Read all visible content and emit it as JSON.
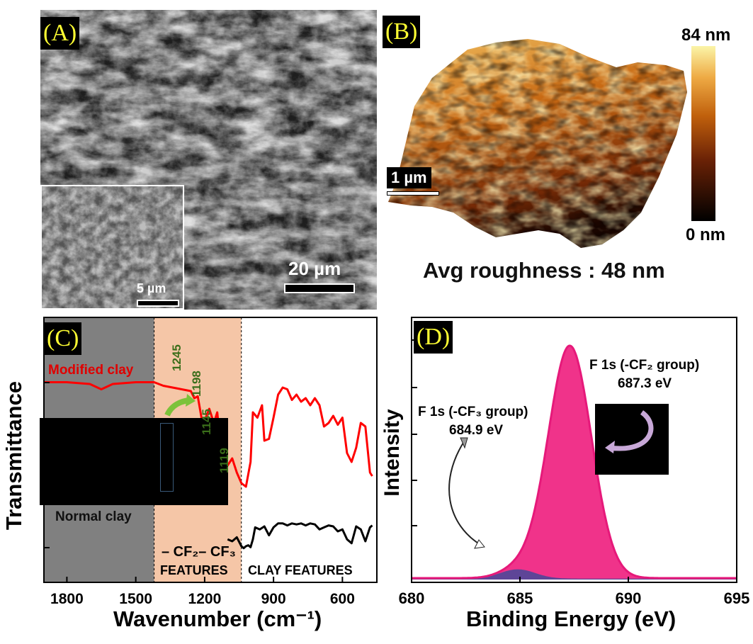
{
  "panels": {
    "a": {
      "label": "(A)",
      "scale_bar": "20 µm",
      "inset_scale_bar": "5 µm"
    },
    "b": {
      "label": "(B)",
      "scale_bar": "1 µm",
      "colorbar_max": "84 nm",
      "colorbar_min": "0 nm",
      "roughness": "Avg roughness : 48 nm",
      "colors": {
        "low": "#000000",
        "mid": "#c0600c",
        "high": "#f8f0a0"
      }
    },
    "c": {
      "label": "(C)",
      "series_top": "Modified clay",
      "series_bottom": "Normal clay",
      "peaks": [
        "1245",
        "1198",
        "1145",
        "1119"
      ],
      "region_cf": "– CF₂– CF₃",
      "region_cf_features": "FEATURES",
      "region_clay": "CLAY FEATURES",
      "colors": {
        "modified": "#ff0000",
        "normal": "#000000",
        "gray_region": "#808080",
        "cf_region": "#f5c6a7",
        "peak_text": "#3a6e1a"
      }
    },
    "d": {
      "label": "(D)",
      "peak_cf2_line1": "F 1s (-CF₂ group)",
      "peak_cf2_line2": "687.3 eV",
      "peak_cf3_line1": "F 1s (-CF₃ group)",
      "peak_cf3_line2": "684.9 eV",
      "colors": {
        "fill": "#f0338a",
        "line": "#e6197a"
      }
    }
  },
  "chart_data": [
    {
      "type": "line",
      "panel": "C",
      "xlabel": "Wavenumber (cm⁻¹)",
      "ylabel": "Transmittance",
      "xlim": [
        1900,
        450
      ],
      "xticks": [
        1800,
        1500,
        1200,
        900,
        600
      ],
      "series": [
        {
          "name": "Modified clay",
          "x": [
            1900,
            1800,
            1700,
            1650,
            1600,
            1500,
            1420,
            1380,
            1300,
            1260,
            1245,
            1230,
            1210,
            1198,
            1180,
            1160,
            1145,
            1130,
            1119,
            1100,
            1080,
            1060,
            1040,
            1020,
            1000,
            990,
            970,
            950,
            940,
            920,
            900,
            880,
            860,
            840,
            820,
            800,
            780,
            760,
            740,
            720,
            700,
            680,
            660,
            640,
            620,
            600,
            580,
            560,
            540,
            520,
            500,
            480,
            470
          ],
          "y": [
            0.95,
            0.95,
            0.94,
            0.91,
            0.94,
            0.95,
            0.95,
            0.93,
            0.91,
            0.9,
            0.86,
            0.87,
            0.72,
            0.74,
            0.8,
            0.72,
            0.78,
            0.58,
            0.6,
            0.48,
            0.52,
            0.44,
            0.38,
            0.36,
            0.5,
            0.78,
            0.75,
            0.82,
            0.62,
            0.63,
            0.75,
            0.88,
            0.92,
            0.91,
            0.85,
            0.88,
            0.84,
            0.86,
            0.82,
            0.86,
            0.82,
            0.7,
            0.72,
            0.76,
            0.71,
            0.75,
            0.55,
            0.5,
            0.58,
            0.72,
            0.7,
            0.44,
            0.42
          ]
        },
        {
          "name": "Normal clay",
          "x": [
            1100,
            1080,
            1060,
            1040,
            1030,
            1020,
            1010,
            1000,
            990,
            980,
            960,
            940,
            920,
            900,
            880,
            860,
            840,
            820,
            800,
            780,
            760,
            740,
            720,
            700,
            680,
            660,
            640,
            620,
            600,
            580,
            560,
            540,
            520,
            500,
            480,
            470
          ],
          "y": [
            0.12,
            0.1,
            0.14,
            0.05,
            0.03,
            0.05,
            0.06,
            0.04,
            0.12,
            0.24,
            0.22,
            0.25,
            0.16,
            0.24,
            0.28,
            0.28,
            0.26,
            0.28,
            0.27,
            0.28,
            0.26,
            0.28,
            0.27,
            0.22,
            0.24,
            0.26,
            0.25,
            0.2,
            0.22,
            0.12,
            0.08,
            0.25,
            0.22,
            0.1,
            0.24,
            0.26
          ]
        }
      ]
    },
    {
      "type": "area",
      "panel": "D",
      "xlabel": "Binding Energy (eV)",
      "ylabel": "Intensity",
      "xlim": [
        680,
        695
      ],
      "xticks": [
        680,
        685,
        690,
        695
      ],
      "series": [
        {
          "name": "F 1s (-CF₂ group)",
          "center": 687.3,
          "sigma": 1.0,
          "amplitude": 1.0
        },
        {
          "name": "F 1s (-CF₃ group)",
          "center": 684.9,
          "sigma": 0.8,
          "amplitude": 0.04
        }
      ]
    }
  ]
}
